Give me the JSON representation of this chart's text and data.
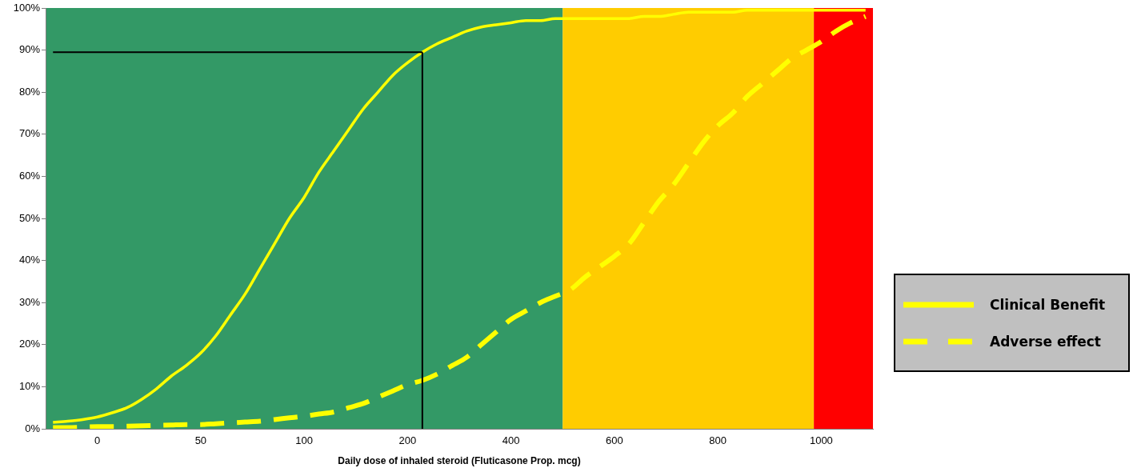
{
  "chart_data": {
    "type": "line",
    "xlabel": "Daily dose of inhaled steroid (Fluticasone Prop. mcg)",
    "categories": [
      null,
      null,
      null,
      "0",
      null,
      null,
      null,
      null,
      null,
      null,
      "50",
      null,
      null,
      null,
      null,
      null,
      null,
      "100",
      null,
      null,
      null,
      null,
      null,
      null,
      "200",
      null,
      null,
      null,
      null,
      null,
      null,
      "400",
      null,
      null,
      null,
      null,
      null,
      null,
      "600",
      null,
      null,
      null,
      null,
      null,
      null,
      "800",
      null,
      null,
      null,
      null,
      null,
      null,
      "1000",
      null,
      null,
      null
    ],
    "ylim": [
      0,
      100
    ],
    "yticks": [
      {
        "value": 0,
        "label": "0%"
      },
      {
        "value": 10,
        "label": "10%"
      },
      {
        "value": 20,
        "label": "20%"
      },
      {
        "value": 30,
        "label": "30%"
      },
      {
        "value": 40,
        "label": "40%"
      },
      {
        "value": 50,
        "label": "50%"
      },
      {
        "value": 60,
        "label": "60%"
      },
      {
        "value": 70,
        "label": "70%"
      },
      {
        "value": 80,
        "label": "80%"
      },
      {
        "value": 90,
        "label": "90%"
      },
      {
        "value": 100,
        "label": "100%"
      }
    ],
    "grid": false,
    "legend": "right",
    "series": [
      {
        "color": "#000000",
        "line_style": "solid",
        "values": [
          89.5,
          89.5,
          89.5,
          89.5,
          89.5,
          89.5,
          89.5,
          89.5,
          89.5,
          89.5,
          89.5,
          89.5,
          89.5,
          89.5,
          89.5,
          89.5,
          89.5,
          89.5,
          89.5,
          89.5,
          89.5,
          89.5,
          89.5,
          89.5,
          89.5,
          89.5,
          null,
          null,
          null,
          null,
          null,
          null,
          null,
          null,
          null,
          null,
          null,
          null,
          null,
          null,
          null,
          null,
          null,
          null,
          null,
          null,
          null,
          null,
          null,
          null,
          null,
          null,
          null,
          null,
          null,
          null
        ]
      },
      {
        "name": "Clinical Benefit",
        "color": "#ffff00",
        "line_style": "solid",
        "values": [
          1.5,
          1.8,
          2.2,
          2.8,
          3.8,
          5,
          7,
          9.5,
          12.5,
          15,
          18,
          22,
          27,
          32,
          38,
          44,
          50,
          55,
          61,
          66,
          71,
          76,
          80,
          84,
          87,
          89.5,
          91.5,
          93,
          94.5,
          95.5,
          96,
          96.5,
          97,
          97,
          97.5,
          97.5,
          97.5,
          97.5,
          97.5,
          97.5,
          98,
          98,
          98.5,
          99,
          99,
          99,
          99,
          99.5,
          99.5,
          99.5,
          99.5,
          99.5,
          99.5,
          99.5,
          99.5,
          99.5
        ]
      },
      {
        "name": "Adverse effect",
        "color": "#ffff00",
        "line_style": "dashed",
        "values": [
          0.3,
          0.3,
          0.4,
          0.5,
          0.5,
          0.6,
          0.7,
          0.8,
          0.9,
          1,
          1,
          1.2,
          1.4,
          1.6,
          1.8,
          2.2,
          2.6,
          3,
          3.5,
          4,
          5,
          6,
          7.5,
          9,
          10.5,
          11.5,
          13,
          15,
          17,
          20,
          23,
          26,
          28,
          30,
          31.5,
          33,
          36,
          38.5,
          41,
          44,
          49,
          54,
          58,
          63,
          68,
          72,
          75,
          79,
          82,
          85,
          88,
          90,
          92,
          94.5,
          96.5,
          98
        ]
      }
    ]
  }
}
